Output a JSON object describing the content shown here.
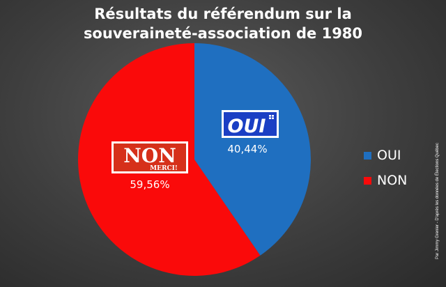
{
  "chart_data": {
    "type": "pie",
    "title_lines": [
      "Résultats du référendum sur la",
      "souveraineté-association de 1980"
    ],
    "slices": [
      {
        "name": "OUI",
        "value": 40.44,
        "label": "40,44%",
        "color": "#1f6fc0",
        "logo_text": "OUI"
      },
      {
        "name": "NON",
        "value": 59.56,
        "label": "59,56%",
        "color": "#fa0a0a",
        "logo_text": "NON",
        "logo_subtext": "MERCI!"
      }
    ],
    "legend": {
      "position": "right",
      "items": [
        {
          "label": "OUI",
          "color": "#1f6fc0"
        },
        {
          "label": "NON",
          "color": "#fa0a0a"
        }
      ]
    }
  },
  "credit": "Par Jimmy Grenier - D'après les données de Élections Québec"
}
